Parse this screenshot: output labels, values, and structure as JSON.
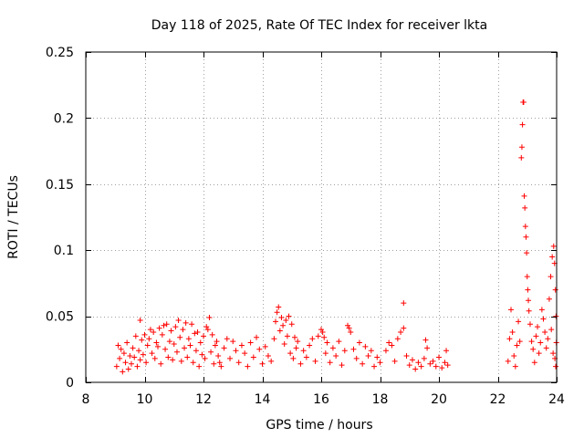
{
  "chart_data": {
    "type": "scatter",
    "title": "Day 118 of 2025, Rate Of TEC Index for receiver lkta",
    "xlabel": "GPS time / hours",
    "ylabel": "ROTI / TECUs",
    "xlim": [
      8,
      24
    ],
    "ylim": [
      0,
      0.25
    ],
    "xticks": [
      8,
      10,
      12,
      14,
      16,
      18,
      20,
      22,
      24
    ],
    "yticks": [
      0,
      0.05,
      0.1,
      0.15,
      0.2,
      0.25
    ],
    "xtick_labels": [
      "8",
      "10",
      "12",
      "14",
      "16",
      "18",
      "20",
      "22",
      "24"
    ],
    "ytick_labels": [
      "0",
      "0.05",
      "0.1",
      "0.15",
      "0.2",
      "0.25"
    ],
    "grid": true,
    "marker": "plus",
    "series": [
      {
        "name": "ROTI",
        "color": "#ff0000",
        "points": [
          [
            9.05,
            0.012
          ],
          [
            9.1,
            0.028
          ],
          [
            9.15,
            0.018
          ],
          [
            9.2,
            0.025
          ],
          [
            9.25,
            0.008
          ],
          [
            9.3,
            0.022
          ],
          [
            9.35,
            0.015
          ],
          [
            9.4,
            0.03
          ],
          [
            9.45,
            0.01
          ],
          [
            9.5,
            0.02
          ],
          [
            9.55,
            0.014
          ],
          [
            9.6,
            0.026
          ],
          [
            9.65,
            0.019
          ],
          [
            9.7,
            0.035
          ],
          [
            9.75,
            0.012
          ],
          [
            9.8,
            0.024
          ],
          [
            9.85,
            0.017
          ],
          [
            9.9,
            0.032
          ],
          [
            9.95,
            0.021
          ],
          [
            10.0,
            0.036
          ],
          [
            9.85,
            0.047
          ],
          [
            10.05,
            0.015
          ],
          [
            10.1,
            0.028
          ],
          [
            10.15,
            0.033
          ],
          [
            10.2,
            0.04
          ],
          [
            10.25,
            0.022
          ],
          [
            10.3,
            0.038
          ],
          [
            10.35,
            0.018
          ],
          [
            10.4,
            0.03
          ],
          [
            10.45,
            0.027
          ],
          [
            10.5,
            0.041
          ],
          [
            10.55,
            0.014
          ],
          [
            10.6,
            0.036
          ],
          [
            10.65,
            0.043
          ],
          [
            10.7,
            0.025
          ],
          [
            10.75,
            0.044
          ],
          [
            10.8,
            0.019
          ],
          [
            10.85,
            0.031
          ],
          [
            10.9,
            0.039
          ],
          [
            10.95,
            0.017
          ],
          [
            11.0,
            0.029
          ],
          [
            11.05,
            0.042
          ],
          [
            11.1,
            0.023
          ],
          [
            11.15,
            0.047
          ],
          [
            11.2,
            0.034
          ],
          [
            11.25,
            0.016
          ],
          [
            11.3,
            0.04
          ],
          [
            11.35,
            0.026
          ],
          [
            11.4,
            0.045
          ],
          [
            11.45,
            0.019
          ],
          [
            11.5,
            0.033
          ],
          [
            11.55,
            0.028
          ],
          [
            11.6,
            0.044
          ],
          [
            11.65,
            0.015
          ],
          [
            11.7,
            0.037
          ],
          [
            11.75,
            0.024
          ],
          [
            11.8,
            0.038
          ],
          [
            11.85,
            0.012
          ],
          [
            11.9,
            0.03
          ],
          [
            11.95,
            0.021
          ],
          [
            12.0,
            0.035
          ],
          [
            12.05,
            0.018
          ],
          [
            12.1,
            0.042
          ],
          [
            12.15,
            0.04
          ],
          [
            12.2,
            0.049
          ],
          [
            12.25,
            0.023
          ],
          [
            12.3,
            0.036
          ],
          [
            12.35,
            0.014
          ],
          [
            12.4,
            0.028
          ],
          [
            12.45,
            0.031
          ],
          [
            12.5,
            0.02
          ],
          [
            12.55,
            0.015
          ],
          [
            12.6,
            0.012
          ],
          [
            12.7,
            0.026
          ],
          [
            12.8,
            0.033
          ],
          [
            12.9,
            0.018
          ],
          [
            13.0,
            0.031
          ],
          [
            13.1,
            0.024
          ],
          [
            13.2,
            0.015
          ],
          [
            13.3,
            0.028
          ],
          [
            13.4,
            0.022
          ],
          [
            13.5,
            0.012
          ],
          [
            13.6,
            0.03
          ],
          [
            13.7,
            0.019
          ],
          [
            13.8,
            0.034
          ],
          [
            13.9,
            0.025
          ],
          [
            14.0,
            0.014
          ],
          [
            14.1,
            0.027
          ],
          [
            14.2,
            0.02
          ],
          [
            14.3,
            0.016
          ],
          [
            14.4,
            0.033
          ],
          [
            14.45,
            0.046
          ],
          [
            14.5,
            0.053
          ],
          [
            14.55,
            0.057
          ],
          [
            14.6,
            0.039
          ],
          [
            14.65,
            0.049
          ],
          [
            14.7,
            0.043
          ],
          [
            14.75,
            0.029
          ],
          [
            14.8,
            0.047
          ],
          [
            14.85,
            0.035
          ],
          [
            14.9,
            0.05
          ],
          [
            14.95,
            0.022
          ],
          [
            15.0,
            0.044
          ],
          [
            15.05,
            0.018
          ],
          [
            15.1,
            0.034
          ],
          [
            15.15,
            0.026
          ],
          [
            15.2,
            0.031
          ],
          [
            15.3,
            0.014
          ],
          [
            15.4,
            0.024
          ],
          [
            15.5,
            0.019
          ],
          [
            15.6,
            0.028
          ],
          [
            15.7,
            0.033
          ],
          [
            15.8,
            0.016
          ],
          [
            15.9,
            0.035
          ],
          [
            16.0,
            0.04
          ],
          [
            16.05,
            0.038
          ],
          [
            16.1,
            0.034
          ],
          [
            16.15,
            0.022
          ],
          [
            16.2,
            0.03
          ],
          [
            16.3,
            0.015
          ],
          [
            16.4,
            0.026
          ],
          [
            16.5,
            0.02
          ],
          [
            16.6,
            0.031
          ],
          [
            16.7,
            0.013
          ],
          [
            16.8,
            0.024
          ],
          [
            16.9,
            0.043
          ],
          [
            16.95,
            0.041
          ],
          [
            17.0,
            0.038
          ],
          [
            17.1,
            0.025
          ],
          [
            17.2,
            0.018
          ],
          [
            17.3,
            0.03
          ],
          [
            17.4,
            0.014
          ],
          [
            17.5,
            0.027
          ],
          [
            17.6,
            0.02
          ],
          [
            17.7,
            0.024
          ],
          [
            17.8,
            0.012
          ],
          [
            17.9,
            0.019
          ],
          [
            18.0,
            0.015
          ],
          [
            18.2,
            0.024
          ],
          [
            18.3,
            0.03
          ],
          [
            18.4,
            0.028
          ],
          [
            18.5,
            0.016
          ],
          [
            18.6,
            0.033
          ],
          [
            18.7,
            0.038
          ],
          [
            18.8,
            0.041
          ],
          [
            18.8,
            0.06
          ],
          [
            18.9,
            0.02
          ],
          [
            19.0,
            0.013
          ],
          [
            19.1,
            0.017
          ],
          [
            19.2,
            0.01
          ],
          [
            19.3,
            0.015
          ],
          [
            19.4,
            0.012
          ],
          [
            19.5,
            0.018
          ],
          [
            19.55,
            0.032
          ],
          [
            19.6,
            0.026
          ],
          [
            19.7,
            0.014
          ],
          [
            19.8,
            0.016
          ],
          [
            19.9,
            0.012
          ],
          [
            20.0,
            0.019
          ],
          [
            20.1,
            0.011
          ],
          [
            20.2,
            0.015
          ],
          [
            20.25,
            0.024
          ],
          [
            20.3,
            0.013
          ],
          [
            22.35,
            0.016
          ],
          [
            22.4,
            0.033
          ],
          [
            22.45,
            0.055
          ],
          [
            22.5,
            0.038
          ],
          [
            22.55,
            0.02
          ],
          [
            22.6,
            0.012
          ],
          [
            22.65,
            0.028
          ],
          [
            22.7,
            0.046
          ],
          [
            22.75,
            0.031
          ],
          [
            22.8,
            0.17
          ],
          [
            22.82,
            0.178
          ],
          [
            22.84,
            0.195
          ],
          [
            22.86,
            0.212
          ],
          [
            22.88,
            0.212
          ],
          [
            22.9,
            0.141
          ],
          [
            22.92,
            0.132
          ],
          [
            22.94,
            0.118
          ],
          [
            22.96,
            0.11
          ],
          [
            22.98,
            0.098
          ],
          [
            23.0,
            0.08
          ],
          [
            23.02,
            0.07
          ],
          [
            23.04,
            0.062
          ],
          [
            23.06,
            0.054
          ],
          [
            23.1,
            0.044
          ],
          [
            23.15,
            0.031
          ],
          [
            23.2,
            0.025
          ],
          [
            23.25,
            0.015
          ],
          [
            23.3,
            0.035
          ],
          [
            23.35,
            0.042
          ],
          [
            23.4,
            0.022
          ],
          [
            23.45,
            0.03
          ],
          [
            23.5,
            0.055
          ],
          [
            23.55,
            0.048
          ],
          [
            23.6,
            0.038
          ],
          [
            23.65,
            0.026
          ],
          [
            23.7,
            0.033
          ],
          [
            23.75,
            0.063
          ],
          [
            23.8,
            0.08
          ],
          [
            23.85,
            0.095
          ],
          [
            23.9,
            0.103
          ],
          [
            23.93,
            0.09
          ],
          [
            23.96,
            0.07
          ],
          [
            23.98,
            0.05
          ],
          [
            23.99,
            0.03
          ],
          [
            23.97,
            0.012
          ],
          [
            23.94,
            0.018
          ],
          [
            23.88,
            0.022
          ],
          [
            23.82,
            0.04
          ]
        ]
      }
    ]
  }
}
